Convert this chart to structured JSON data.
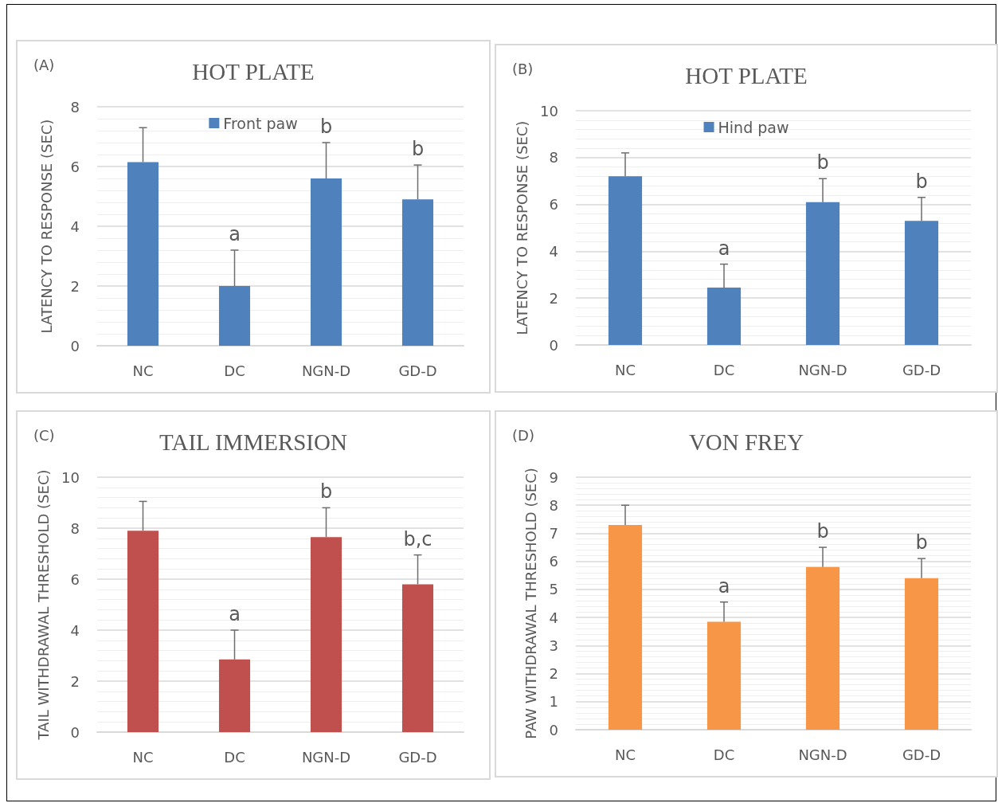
{
  "chart_data": [
    {
      "type": "bar",
      "title": "HOT PLATE",
      "ylabel": "LATENCY TO RESPONSE (SEC)",
      "categories": [
        "NC",
        "DC",
        "NGN-D",
        "GD-D"
      ],
      "series": [
        {
          "name": "Front paw",
          "color": "#4f81bd",
          "values": [
            6.15,
            2.0,
            5.6,
            4.9
          ],
          "errors": [
            [
              6.15,
              7.3
            ],
            [
              2.0,
              3.2
            ],
            [
              5.6,
              6.8
            ],
            [
              4.9,
              6.05
            ]
          ]
        }
      ],
      "ylim": [
        0,
        8
      ],
      "yticks": [
        0,
        2,
        4,
        6,
        8
      ],
      "grid": "y",
      "legend": "top",
      "annotations": [
        "(A)",
        {
          "text": "a",
          "x": "DC",
          "y": 3.2
        },
        {
          "text": "b",
          "x": "NGN-D",
          "y": 6.8
        },
        {
          "text": "b",
          "x": "GD-D",
          "y": 6.05
        }
      ]
    },
    {
      "type": "bar",
      "title": "HOT PLATE",
      "ylabel": "LATENCY TO RESPONSE (SEC)",
      "categories": [
        "NC",
        "DC",
        "NGN-D",
        "GD-D"
      ],
      "series": [
        {
          "name": "Hind paw",
          "color": "#4f81bd",
          "values": [
            7.2,
            2.45,
            6.1,
            5.3
          ],
          "errors": [
            [
              7.2,
              8.2
            ],
            [
              2.45,
              3.45
            ],
            [
              6.1,
              7.1
            ],
            [
              5.3,
              6.3
            ]
          ]
        }
      ],
      "ylim": [
        0,
        10
      ],
      "yticks": [
        0,
        2,
        4,
        6,
        8,
        10
      ],
      "grid": "y",
      "legend": "top",
      "annotations": [
        "(B)",
        {
          "text": "a",
          "x": "DC",
          "y": 3.45
        },
        {
          "text": "b",
          "x": "NGN-D",
          "y": 7.1
        },
        {
          "text": "b",
          "x": "GD-D",
          "y": 6.3
        }
      ]
    },
    {
      "type": "bar",
      "title": "TAIL IMMERSION",
      "ylabel": "TAIL WITHDRAWAL THRESHOLD (SEC)",
      "categories": [
        "NC",
        "DC",
        "NGN-D",
        "GD-D"
      ],
      "series": [
        {
          "color": "#c0504d",
          "values": [
            7.9,
            2.85,
            7.65,
            5.8
          ],
          "errors": [
            [
              7.9,
              9.05
            ],
            [
              2.85,
              4.0
            ],
            [
              7.65,
              8.8
            ],
            [
              5.8,
              6.95
            ]
          ]
        }
      ],
      "ylim": [
        0,
        10
      ],
      "yticks": [
        0,
        2,
        4,
        6,
        8,
        10
      ],
      "grid": "y",
      "annotations": [
        "(C)",
        {
          "text": "a",
          "x": "DC",
          "y": 4.0
        },
        {
          "text": "b",
          "x": "NGN-D",
          "y": 8.8
        },
        {
          "text": "b,c",
          "x": "GD-D",
          "y": 6.95
        }
      ]
    },
    {
      "type": "bar",
      "title": "VON FREY",
      "ylabel": "PAW WITHDRAWAL THRESHOLD (SEC)",
      "categories": [
        "NC",
        "DC",
        "NGN-D",
        "GD-D"
      ],
      "series": [
        {
          "color": "#f79646",
          "values": [
            7.3,
            3.85,
            5.8,
            5.4
          ],
          "errors": [
            [
              7.3,
              8.0
            ],
            [
              3.85,
              4.55
            ],
            [
              5.8,
              6.5
            ],
            [
              5.4,
              6.1
            ]
          ]
        }
      ],
      "ylim": [
        0,
        9
      ],
      "yticks": [
        0,
        1,
        2,
        3,
        4,
        5,
        6,
        7,
        8,
        9
      ],
      "grid": "y",
      "annotations": [
        "(D)",
        {
          "text": "a",
          "x": "DC",
          "y": 4.55
        },
        {
          "text": "b",
          "x": "NGN-D",
          "y": 6.5
        },
        {
          "text": "b",
          "x": "GD-D",
          "y": 6.1
        }
      ]
    }
  ]
}
